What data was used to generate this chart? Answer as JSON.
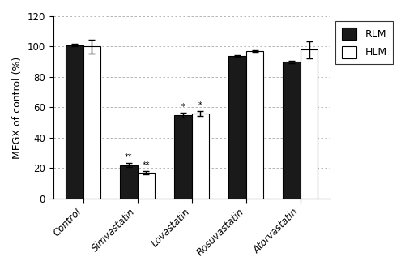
{
  "categories": [
    "Control",
    "Simvastatin",
    "Lovastatin",
    "Rosuvastatin",
    "Atorvastatin"
  ],
  "RLM_values": [
    101,
    22,
    55,
    94,
    90
  ],
  "HLM_values": [
    100,
    17,
    56,
    97,
    98
  ],
  "RLM_errors": [
    1.0,
    1.5,
    1.5,
    0.5,
    0.8
  ],
  "HLM_errors": [
    4.5,
    1.2,
    1.5,
    0.5,
    5.5
  ],
  "RLM_color": "#1a1a1a",
  "HLM_color": "#ffffff",
  "bar_edge_color": "#000000",
  "ylabel": "MEGX of control (%)",
  "ylim": [
    0,
    120
  ],
  "yticks": [
    0,
    20,
    40,
    60,
    80,
    100,
    120
  ],
  "bar_width": 0.32,
  "legend_labels": [
    "RLM",
    "HLM"
  ],
  "background_color": "#ffffff",
  "grid_color": "#aaaaaa",
  "figsize": [
    5.0,
    3.33
  ],
  "dpi": 100
}
